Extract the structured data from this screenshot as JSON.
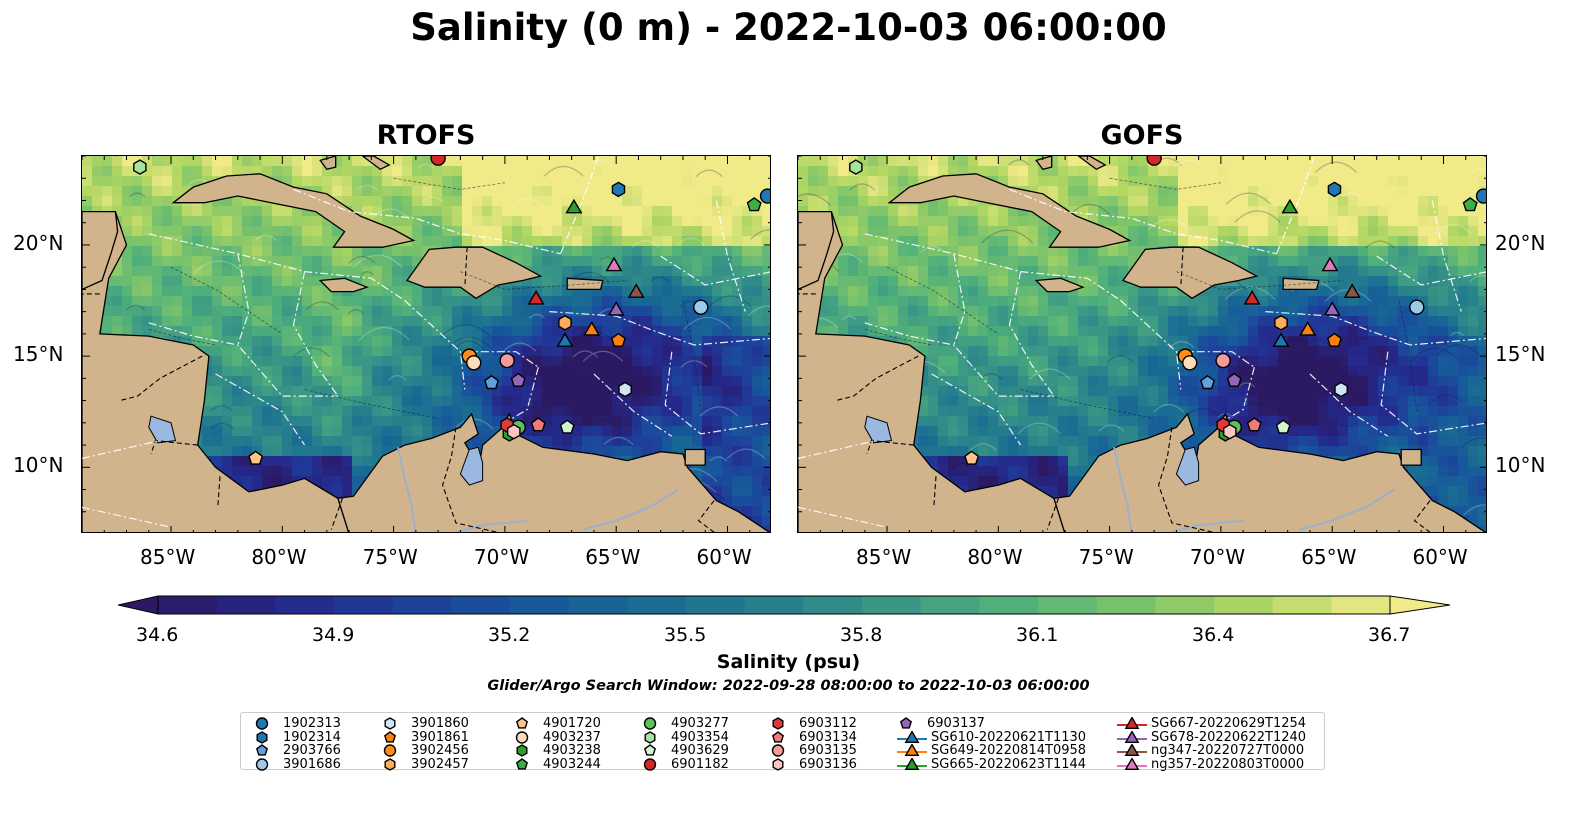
{
  "title": "Salinity (0 m) - 2022-10-03 06:00:00",
  "panels": [
    {
      "title": "RTOFS",
      "variant": 0
    },
    {
      "title": "GOFS",
      "variant": 1
    }
  ],
  "x_ticks": [
    "85°W",
    "80°W",
    "75°W",
    "70°W",
    "65°W",
    "60°W"
  ],
  "y_ticks": [
    "20°N",
    "15°N",
    "10°N"
  ],
  "colorbar": {
    "label": "Salinity (psu)",
    "ticks": [
      "34.6",
      "34.9",
      "35.2",
      "35.5",
      "35.8",
      "36.1",
      "36.4",
      "36.7"
    ],
    "min": 34.6,
    "max": 36.7
  },
  "search_window": "Glider/Argo Search Window: 2022-09-28 08:00:00 to 2022-10-03 06:00:00",
  "legend": {
    "columns": [
      [
        {
          "label": "1902313",
          "marker": "circle",
          "color": "#1f77b4"
        },
        {
          "label": "1902314",
          "marker": "hexagon",
          "color": "#1f77b4"
        },
        {
          "label": "2903766",
          "marker": "pentagon",
          "color": "#5fa2dd"
        },
        {
          "label": "3901686",
          "marker": "circle",
          "color": "#9ecae9"
        }
      ],
      [
        {
          "label": "3901860",
          "marker": "hexagon",
          "color": "#cfe7f5"
        },
        {
          "label": "3901861",
          "marker": "pentagon",
          "color": "#ff7f0e"
        },
        {
          "label": "3902456",
          "marker": "circle",
          "color": "#ff8c1a"
        },
        {
          "label": "3902457",
          "marker": "hexagon",
          "color": "#ffab5c"
        }
      ],
      [
        {
          "label": "4901720",
          "marker": "pentagon",
          "color": "#ffc68a"
        },
        {
          "label": "4903237",
          "marker": "circle",
          "color": "#ffdcb8"
        },
        {
          "label": "4903238",
          "marker": "hexagon",
          "color": "#2ca02c"
        },
        {
          "label": "4903244",
          "marker": "pentagon",
          "color": "#3cb043"
        }
      ],
      [
        {
          "label": "4903277",
          "marker": "circle",
          "color": "#5dc15d"
        },
        {
          "label": "4903354",
          "marker": "hexagon",
          "color": "#a6e3a1"
        },
        {
          "label": "4903629",
          "marker": "pentagon",
          "color": "#d4f3cf"
        },
        {
          "label": "6901182",
          "marker": "circle",
          "color": "#d62728"
        }
      ],
      [
        {
          "label": "6903112",
          "marker": "hexagon",
          "color": "#e03a3b"
        },
        {
          "label": "6903134",
          "marker": "pentagon",
          "color": "#f07a7a"
        },
        {
          "label": "6903135",
          "marker": "circle",
          "color": "#f49a9a"
        },
        {
          "label": "6903136",
          "marker": "hexagon",
          "color": "#fbc5c5"
        }
      ],
      [
        {
          "label": "6903137",
          "marker": "pentagon",
          "color": "#9467bd"
        },
        {
          "label": "SG610-20220621T1130",
          "marker": "triangle-line",
          "color": "#1f77b4"
        },
        {
          "label": "SG649-20220814T0958",
          "marker": "triangle-line",
          "color": "#ff7f0e"
        },
        {
          "label": "SG665-20220623T1144",
          "marker": "triangle-line",
          "color": "#2ca02c"
        }
      ],
      [
        {
          "label": "SG667-20220629T1254",
          "marker": "triangle-line",
          "color": "#d62728"
        },
        {
          "label": "SG678-20220622T1240",
          "marker": "triangle-line",
          "color": "#9467bd"
        },
        {
          "label": "ng347-20220727T0000",
          "marker": "triangle-line",
          "color": "#8c564b"
        },
        {
          "label": "ng357-20220803T0000",
          "marker": "triangle-line",
          "color": "#e377c2"
        }
      ]
    ]
  },
  "platforms": [
    {
      "id": "1902313",
      "marker": "circle",
      "color": "#1f77b4",
      "lon": -58.2,
      "lat": 22.2
    },
    {
      "id": "1902314",
      "marker": "hexagon",
      "color": "#1f77b4",
      "lon": -64.9,
      "lat": 22.5
    },
    {
      "id": "2903766",
      "marker": "pentagon",
      "color": "#5fa2dd",
      "lon": -70.6,
      "lat": 13.8
    },
    {
      "id": "3901686",
      "marker": "circle",
      "color": "#9ecae9",
      "lon": -61.2,
      "lat": 17.2
    },
    {
      "id": "3901860",
      "marker": "hexagon",
      "color": "#cfe7f5",
      "lon": -64.6,
      "lat": 13.5
    },
    {
      "id": "3901861",
      "marker": "pentagon",
      "color": "#ff7f0e",
      "lon": -64.9,
      "lat": 15.7
    },
    {
      "id": "3902456",
      "marker": "circle",
      "color": "#ff8c1a",
      "lon": -71.6,
      "lat": 15.0
    },
    {
      "id": "3902457",
      "marker": "hexagon",
      "color": "#ffab5c",
      "lon": -67.3,
      "lat": 16.5
    },
    {
      "id": "4901720",
      "marker": "pentagon",
      "color": "#ffc68a",
      "lon": -81.2,
      "lat": 10.4
    },
    {
      "id": "4903237",
      "marker": "circle",
      "color": "#ffdcb8",
      "lon": -71.4,
      "lat": 14.7
    },
    {
      "id": "4903238",
      "marker": "hexagon",
      "color": "#2ca02c",
      "lon": -69.8,
      "lat": 11.5
    },
    {
      "id": "4903244",
      "marker": "pentagon",
      "color": "#3cb043",
      "lon": -58.8,
      "lat": 21.8
    },
    {
      "id": "4903277",
      "marker": "circle",
      "color": "#5dc15d",
      "lon": -69.4,
      "lat": 11.8
    },
    {
      "id": "4903354",
      "marker": "hexagon",
      "color": "#a6e3a1",
      "lon": -86.4,
      "lat": 23.5
    },
    {
      "id": "4903629",
      "marker": "pentagon",
      "color": "#d4f3cf",
      "lon": -67.2,
      "lat": 11.8
    },
    {
      "id": "6901182",
      "marker": "circle",
      "color": "#d62728",
      "lon": -73.0,
      "lat": 23.9
    },
    {
      "id": "6903112",
      "marker": "hexagon",
      "color": "#e03a3b",
      "lon": -69.9,
      "lat": 11.9
    },
    {
      "id": "6903134",
      "marker": "pentagon",
      "color": "#f07a7a",
      "lon": -68.5,
      "lat": 11.9
    },
    {
      "id": "6903135",
      "marker": "circle",
      "color": "#f49a9a",
      "lon": -69.9,
      "lat": 14.8
    },
    {
      "id": "6903136",
      "marker": "hexagon",
      "color": "#fbc5c5",
      "lon": -69.6,
      "lat": 11.6
    },
    {
      "id": "6903137",
      "marker": "pentagon",
      "color": "#9467bd",
      "lon": -69.4,
      "lat": 13.9
    },
    {
      "id": "SG610-20220621T1130",
      "marker": "triangle",
      "color": "#1f77b4",
      "lon": -67.3,
      "lat": 15.7
    },
    {
      "id": "SG649-20220814T0958",
      "marker": "triangle",
      "color": "#ff7f0e",
      "lon": -66.1,
      "lat": 16.2
    },
    {
      "id": "SG665-20220623T1144",
      "marker": "triangle",
      "color": "#2ca02c",
      "lon": -66.9,
      "lat": 21.7
    },
    {
      "id": "SG667-20220629T1254",
      "marker": "triangle",
      "color": "#d62728",
      "lon": -68.6,
      "lat": 17.6
    },
    {
      "id": "SG678-20220622T1240",
      "marker": "triangle",
      "color": "#9467bd",
      "lon": -65.0,
      "lat": 17.1
    },
    {
      "id": "ng347-20220727T0000",
      "marker": "triangle",
      "color": "#8c564b",
      "lon": -64.1,
      "lat": 17.9
    },
    {
      "id": "ng357-20220803T0000",
      "marker": "triangle",
      "color": "#e377c2",
      "lon": -65.1,
      "lat": 19.1
    }
  ]
}
